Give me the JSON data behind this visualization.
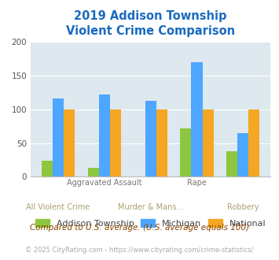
{
  "title": "2019 Addison Township\nViolent Crime Comparison",
  "categories": [
    "All Violent Crime",
    "Aggravated Assault",
    "Murder & Mans...",
    "Rape",
    "Robbery"
  ],
  "addison": [
    24,
    13,
    0,
    72,
    38
  ],
  "michigan": [
    116,
    122,
    112,
    170,
    65
  ],
  "national": [
    100,
    100,
    100,
    100,
    100
  ],
  "colors": {
    "addison": "#8dc63f",
    "michigan": "#4da6ff",
    "national": "#f5a623"
  },
  "ylim": [
    0,
    200
  ],
  "yticks": [
    0,
    50,
    100,
    150,
    200
  ],
  "plot_bg": "#dde8ef",
  "title_color": "#1a6bbf",
  "footer1": "Compared to U.S. average. (U.S. average equals 100)",
  "footer2": "© 2025 CityRating.com - https://www.cityrating.com/crime-statistics/",
  "legend_labels": [
    "Addison Township",
    "Michigan",
    "National"
  ],
  "top_xlabels": [
    "",
    "Aggravated Assault",
    "",
    "Rape",
    ""
  ],
  "bottom_xlabels": [
    "All Violent Crime",
    "",
    "Murder & Mans...",
    "",
    "Robbery"
  ]
}
